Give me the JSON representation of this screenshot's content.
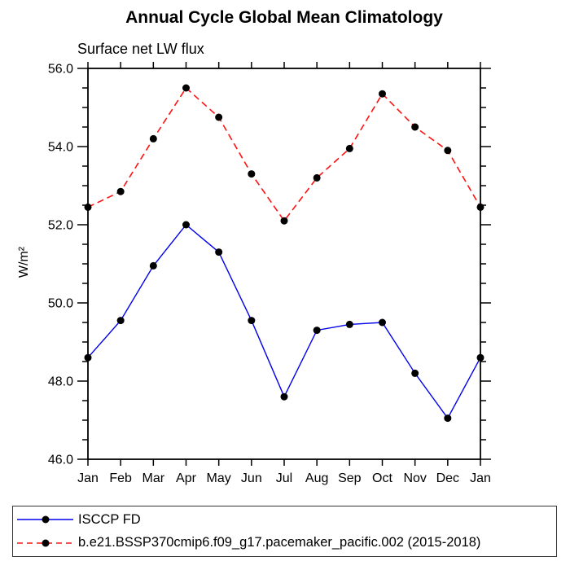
{
  "page": {
    "background": "#ffffff",
    "frame_color": "#000000"
  },
  "chart_data": {
    "type": "line",
    "title": "Annual Cycle Global Mean Climatology",
    "subtitle": "Surface net LW flux",
    "ylabel": "W/m²",
    "xlabel": "",
    "x_tick_labels": [
      "Jan",
      "Feb",
      "Mar",
      "Apr",
      "May",
      "Jun",
      "Jul",
      "Aug",
      "Sep",
      "Oct",
      "Nov",
      "Dec",
      "Jan"
    ],
    "ylim": [
      46.0,
      56.0
    ],
    "y_major_step": 2.0,
    "y_minor_step": 0.5,
    "y_tick_labels": [
      "46.0",
      "48.0",
      "50.0",
      "52.0",
      "54.0",
      "56.0"
    ],
    "grid": false,
    "legend_position": "bottom",
    "marker": "filled-circle",
    "series": [
      {
        "name": "ISCCP FD",
        "color": "#0000ee",
        "line_style": "solid",
        "marker_color": "#000000",
        "values": [
          48.6,
          49.55,
          50.95,
          52.0,
          51.3,
          49.55,
          47.6,
          49.3,
          49.45,
          49.5,
          48.2,
          47.05,
          48.6
        ]
      },
      {
        "name": "b.e21.BSSP370cmip6.f09_g17.pacemaker_pacific.002 (2015-2018)",
        "color": "#ff1111",
        "line_style": "dashed",
        "marker_color": "#000000",
        "values": [
          52.45,
          52.85,
          54.2,
          55.5,
          54.75,
          53.3,
          52.1,
          53.2,
          53.95,
          55.35,
          54.5,
          53.9,
          52.45
        ]
      }
    ]
  }
}
